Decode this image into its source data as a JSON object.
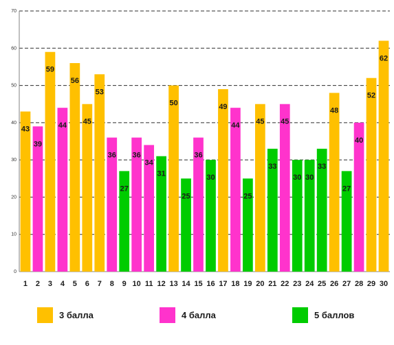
{
  "chart_data": {
    "type": "bar",
    "categories": [
      "1",
      "2",
      "3",
      "4",
      "5",
      "6",
      "7",
      "8",
      "9",
      "10",
      "11",
      "12",
      "13",
      "14",
      "15",
      "16",
      "17",
      "18",
      "19",
      "20",
      "21",
      "22",
      "23",
      "24",
      "25",
      "26",
      "27",
      "28",
      "29",
      "30"
    ],
    "values": [
      43,
      39,
      59,
      44,
      56,
      45,
      53,
      36,
      27,
      36,
      34,
      31,
      50,
      25,
      36,
      30,
      49,
      44,
      25,
      45,
      33,
      45,
      30,
      30,
      33,
      48,
      27,
      40,
      52,
      62
    ],
    "groups": [
      "3",
      "1",
      "3",
      "1",
      "3",
      "3",
      "3",
      "1",
      "2",
      "1",
      "1",
      "2",
      "3",
      "2",
      "1",
      "2",
      "3",
      "1",
      "2",
      "3",
      "2",
      "1",
      "2",
      "2",
      "2",
      "3",
      "2",
      "1",
      "3",
      "3"
    ],
    "ylim": [
      0,
      70
    ],
    "yticks": [
      "0",
      "10",
      "20",
      "30",
      "40",
      "50",
      "60",
      "70"
    ],
    "grid": true,
    "legend_position": "bottom",
    "legend": [
      {
        "key": "3",
        "name": "3 балла",
        "color": "#FFC000"
      },
      {
        "key": "1",
        "name": "4 балла",
        "color": "#FF33CC"
      },
      {
        "key": "2",
        "name": "5 баллов",
        "color": "#00CC00"
      }
    ]
  }
}
